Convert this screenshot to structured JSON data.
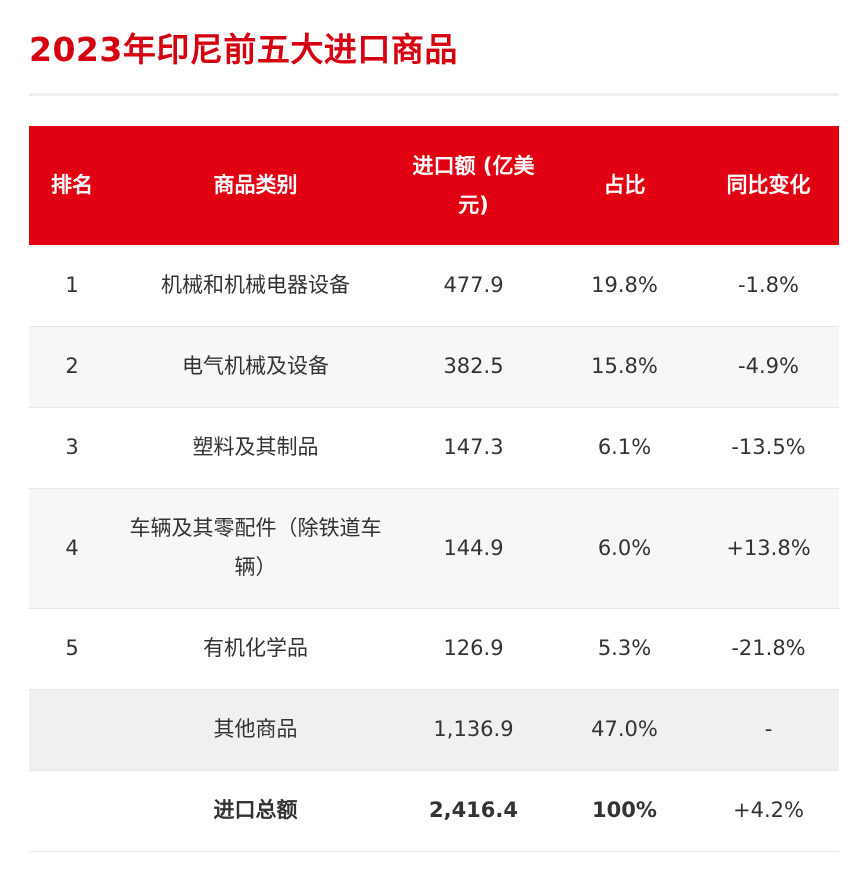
{
  "page": {
    "title": "2023年印尼前五大进口商品"
  },
  "table": {
    "headers": {
      "rank": "排名",
      "category": "商品类别",
      "value": "进口额 (亿美元)",
      "share": "占比",
      "change": "同比变化"
    },
    "rows": [
      {
        "rank": "1",
        "category": "机械和机械电器设备",
        "value": "477.9",
        "share": "19.8%",
        "change": "-1.8%"
      },
      {
        "rank": "2",
        "category": "电气机械及设备",
        "value": "382.5",
        "share": "15.8%",
        "change": "-4.9%"
      },
      {
        "rank": "3",
        "category": "塑料及其制品",
        "value": "147.3",
        "share": "6.1%",
        "change": "-13.5%"
      },
      {
        "rank": "4",
        "category": "车辆及其零配件（除铁道车辆）",
        "value": "144.9",
        "share": "6.0%",
        "change": "+13.8%"
      },
      {
        "rank": "5",
        "category": "有机化学品",
        "value": "126.9",
        "share": "5.3%",
        "change": "-21.8%"
      }
    ],
    "other": {
      "category": "其他商品",
      "value": "1,136.9",
      "share": "47.0%",
      "change": "-"
    },
    "total": {
      "category": "进口总额",
      "value": "2,416.4",
      "share": "100%",
      "change": "+4.2%"
    }
  },
  "colors": {
    "brand_red": "#e00012",
    "title_red": "#d4000f",
    "negative": "#e0473a",
    "positive": "#2fc46b"
  }
}
